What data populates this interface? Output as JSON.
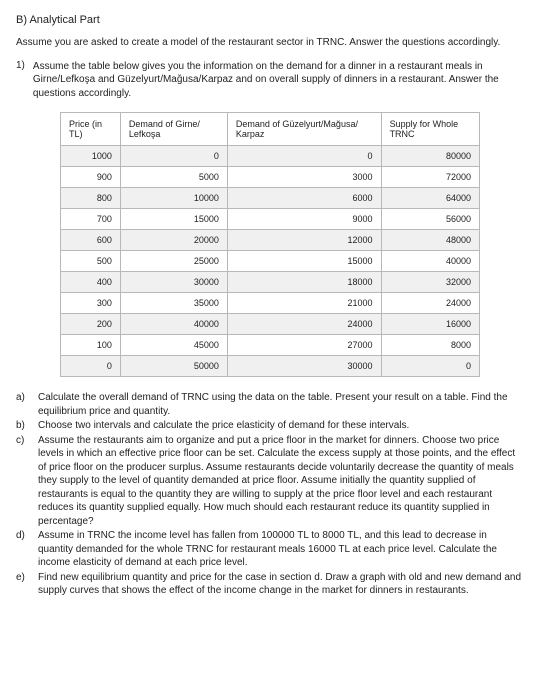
{
  "heading": "B) Analytical Part",
  "intro": "Assume you are asked to create a model of the restaurant sector in TRNC. Answer the questions accordingly.",
  "q1_num": "1)",
  "q1_text": "Assume the table below gives you the information on the demand for a dinner in a restaurant meals in Girne/Lefkoşa and Güzelyurt/Mağusa/Karpaz and on overall supply of dinners in a restaurant. Answer the questions accordingly.",
  "table": {
    "headers": [
      "Price (in TL)",
      "Demand of Girne/\nLefkoşa",
      "Demand of\nGüzelyurt/Mağusa/\nKarpaz",
      "Supply for Whole\nTRNC"
    ],
    "rows": [
      [
        "1000",
        "0",
        "0",
        "80000"
      ],
      [
        "900",
        "5000",
        "3000",
        "72000"
      ],
      [
        "800",
        "10000",
        "6000",
        "64000"
      ],
      [
        "700",
        "15000",
        "9000",
        "56000"
      ],
      [
        "600",
        "20000",
        "12000",
        "48000"
      ],
      [
        "500",
        "25000",
        "15000",
        "40000"
      ],
      [
        "400",
        "30000",
        "18000",
        "32000"
      ],
      [
        "300",
        "35000",
        "21000",
        "24000"
      ],
      [
        "200",
        "40000",
        "24000",
        "16000"
      ],
      [
        "100",
        "45000",
        "27000",
        "8000"
      ],
      [
        "0",
        "50000",
        "30000",
        "0"
      ]
    ],
    "alt_row_bg": "#f0f0f0",
    "border_color": "#b8b8b8",
    "font_size": 9
  },
  "letters": [
    {
      "label": "a)",
      "text": "Calculate the overall demand of TRNC using the data on the table. Present your result on a table. Find the equilibrium price and quantity."
    },
    {
      "label": "b)",
      "text": "Choose two intervals and calculate the price elasticity of demand for these intervals."
    },
    {
      "label": "c)",
      "text": "Assume the restaurants aim to organize and put a price floor in the market for dinners. Choose two price levels in which an effective price floor can be set. Calculate the excess supply at those points, and the effect of price floor on the producer surplus. Assume restaurants decide voluntarily decrease the quantity of meals they supply to the level of quantity demanded at price floor. Assume initially the quantity supplied of restaurants is equal to the quantity they are willing to supply at the price floor level and each restaurant reduces its quantity supplied equally. How much should each restaurant reduce its quantity supplied in percentage?"
    },
    {
      "label": "d)",
      "text": "Assume in TRNC the income level has fallen from 100000 TL to 8000 TL, and this lead to decrease in quantity demanded for the whole TRNC for restaurant meals 16000 TL at each price level. Calculate the income elasticity of demand at each price level."
    },
    {
      "label": "e)",
      "text": "Find new equilibrium quantity and price for the case in section d. Draw a graph with old and new demand and supply curves that shows the effect of the income change in the market for dinners in restaurants."
    }
  ],
  "colors": {
    "text": "#222222",
    "background": "#ffffff"
  }
}
